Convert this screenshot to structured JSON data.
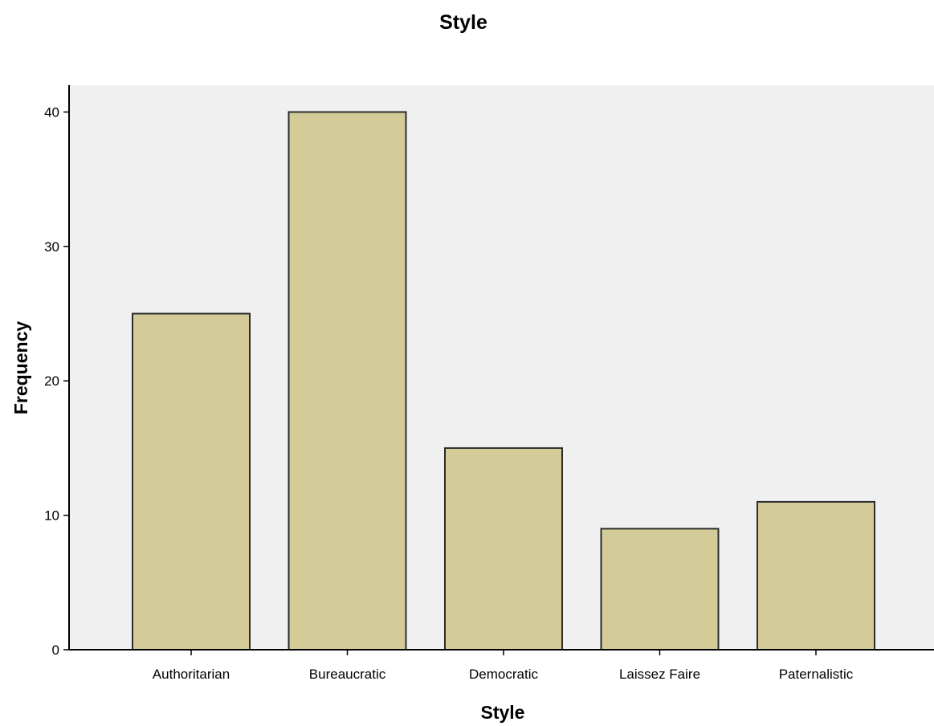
{
  "chart_data": {
    "type": "bar",
    "title": "Style",
    "xlabel": "Style",
    "ylabel": "Frequency",
    "categories": [
      "Authoritarian",
      "Bureaucratic",
      "Democratic",
      "Laissez Faire",
      "Paternalistic"
    ],
    "values": [
      25,
      40,
      15,
      9,
      11
    ],
    "ylim": [
      0,
      42
    ],
    "yticks": [
      0,
      10,
      20,
      30,
      40
    ],
    "grid": false,
    "legend": "none",
    "colors": {
      "bar_fill": "#d3cc98",
      "bar_stroke": "#2b2b2b",
      "plot_background": "#f0f0f0",
      "axis": "#000000"
    }
  }
}
